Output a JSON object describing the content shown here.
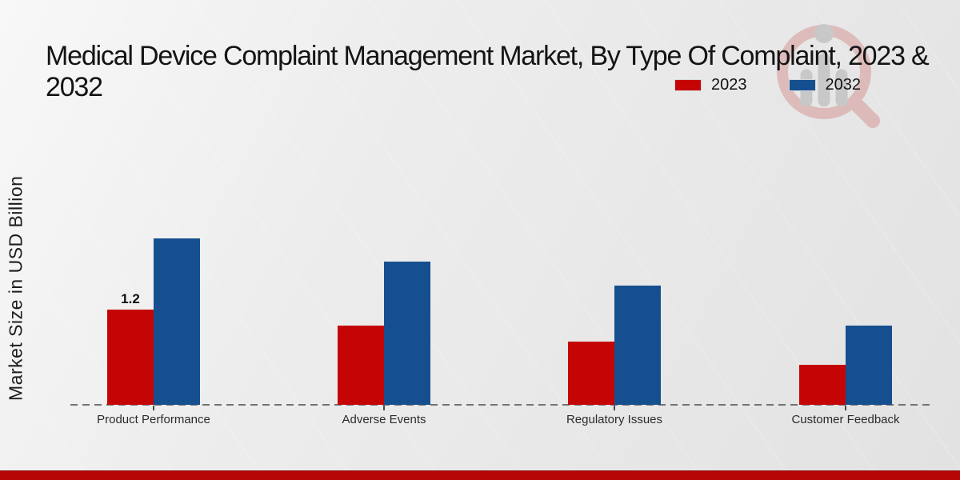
{
  "header": {
    "title_line1": "Medical Device Complaint Management Market, By Type Of Complaint, 2023 &",
    "title_line2": "2032"
  },
  "legend": {
    "items": [
      {
        "label": "2023",
        "color": "#c50505"
      },
      {
        "label": "2032",
        "color": "#164f90"
      }
    ]
  },
  "chart_data": {
    "type": "bar",
    "title": "Medical Device Complaint Management Market, By Type Of Complaint, 2023 & 2032",
    "xlabel": "",
    "ylabel": "Market Size in USD Billion",
    "categories": [
      "Product Performance",
      "Adverse Events",
      "Regulatory Issues",
      "Customer Feedback"
    ],
    "series": [
      {
        "name": "2023",
        "color": "#c50505",
        "values": [
          1.2,
          1.0,
          0.8,
          0.5
        ]
      },
      {
        "name": "2032",
        "color": "#164f90",
        "values": [
          2.1,
          1.8,
          1.5,
          1.0
        ]
      }
    ],
    "value_labels": {
      "2023": [
        "1.2",
        "",
        "",
        ""
      ]
    },
    "ylim": [
      0,
      2.3
    ],
    "grid": "off",
    "baseline_style": "dashed",
    "legend_position": "top-right"
  },
  "watermark": {
    "name": "magnifier-bar-chart-logo"
  },
  "footer": {
    "band_color": "#b60606"
  }
}
